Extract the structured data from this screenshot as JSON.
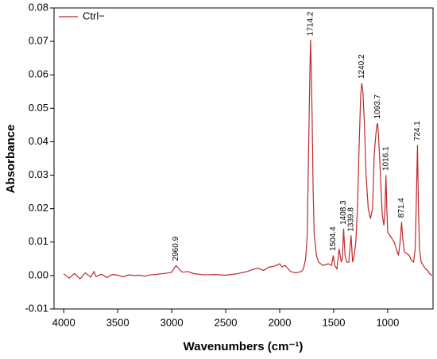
{
  "chart_data": {
    "type": "line",
    "xlabel": "Wavenumbers (cm⁻¹)",
    "ylabel": "Absorbance",
    "xlim": [
      4090,
      580
    ],
    "reverse_x": true,
    "xticks": [
      4000,
      3500,
      3000,
      2500,
      2000,
      1500,
      1000
    ],
    "ylim": [
      -0.01,
      0.08
    ],
    "yticks": [
      -0.01,
      {
        "value": 0,
        "label": "0.00"
      },
      0.01,
      0.02,
      0.03,
      0.04,
      0.05,
      0.06,
      0.07,
      0.08
    ],
    "legend": "upper left",
    "x": [
      4000,
      3950,
      3900,
      3850,
      3800,
      3750,
      3720,
      3700,
      3650,
      3600,
      3550,
      3500,
      3450,
      3400,
      3350,
      3300,
      3250,
      3200,
      3150,
      3100,
      3050,
      3000,
      2980,
      2960,
      2940,
      2920,
      2900,
      2850,
      2800,
      2700,
      2600,
      2500,
      2400,
      2300,
      2250,
      2200,
      2150,
      2100,
      2050,
      2000,
      1980,
      1950,
      1900,
      1850,
      1800,
      1780,
      1760,
      1745,
      1730,
      1720,
      1714,
      1708,
      1700,
      1690,
      1680,
      1660,
      1640,
      1600,
      1550,
      1520,
      1504,
      1490,
      1470,
      1450,
      1430,
      1420,
      1408,
      1395,
      1380,
      1360,
      1339,
      1325,
      1310,
      1295,
      1280,
      1265,
      1250,
      1240,
      1230,
      1215,
      1200,
      1180,
      1160,
      1140,
      1125,
      1110,
      1100,
      1093,
      1085,
      1070,
      1050,
      1035,
      1025,
      1016,
      1008,
      1000,
      980,
      960,
      940,
      920,
      900,
      885,
      871,
      860,
      845,
      820,
      800,
      780,
      760,
      745,
      735,
      724,
      715,
      705,
      690,
      670,
      650,
      630,
      610,
      590
    ],
    "series": [
      {
        "name": "Ctrl−",
        "color": "#c0282c",
        "values": [
          0.0005,
          -0.0008,
          0.0006,
          -0.001,
          0.0008,
          -0.0005,
          0.0012,
          -0.0003,
          0.0004,
          -0.0006,
          0.0003,
          0.0001,
          -0.0004,
          0.0002,
          0.0,
          0.0001,
          -0.0002,
          0.0002,
          0.0003,
          0.0005,
          0.0007,
          0.001,
          0.002,
          0.003,
          0.0022,
          0.0015,
          0.001,
          0.0012,
          0.0006,
          0.0002,
          0.0003,
          0.0001,
          0.0005,
          0.0012,
          0.0018,
          0.0022,
          0.0015,
          0.0025,
          0.0028,
          0.0035,
          0.0026,
          0.003,
          0.0012,
          0.0008,
          0.0012,
          0.002,
          0.005,
          0.012,
          0.042,
          0.062,
          0.0705,
          0.062,
          0.048,
          0.025,
          0.012,
          0.006,
          0.004,
          0.003,
          0.0035,
          0.003,
          0.006,
          0.003,
          0.002,
          0.008,
          0.004,
          0.005,
          0.014,
          0.006,
          0.004,
          0.004,
          0.012,
          0.004,
          0.006,
          0.01,
          0.02,
          0.038,
          0.054,
          0.0575,
          0.055,
          0.045,
          0.03,
          0.02,
          0.017,
          0.02,
          0.036,
          0.042,
          0.045,
          0.0455,
          0.042,
          0.032,
          0.018,
          0.015,
          0.02,
          0.03,
          0.02,
          0.013,
          0.012,
          0.011,
          0.01,
          0.008,
          0.006,
          0.01,
          0.016,
          0.011,
          0.007,
          0.0065,
          0.006,
          0.0045,
          0.004,
          0.008,
          0.022,
          0.039,
          0.02,
          0.008,
          0.004,
          0.003,
          0.002,
          0.0015,
          0.0005,
          0.0
        ]
      }
    ],
    "peak_labels": [
      2960.9,
      1714.2,
      1504.4,
      1408.3,
      1339.8,
      1240.2,
      1093.7,
      1016.1,
      871.4,
      724.1
    ]
  }
}
